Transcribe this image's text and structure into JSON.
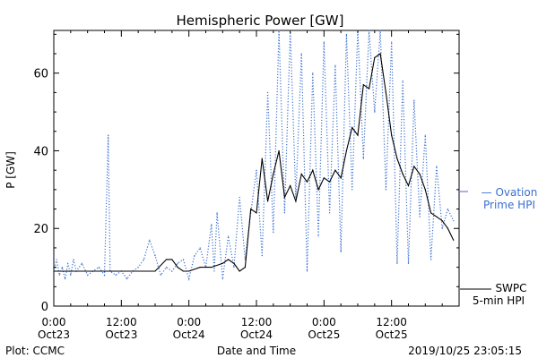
{
  "chart_data": {
    "type": "line",
    "title": "Hemispheric Power [GW]",
    "xlabel": "Date and Time",
    "ylabel": "P [GW]",
    "xlim": [
      "2019-10-23 00:00",
      "2019-10-26 00:00"
    ],
    "ylim": [
      0,
      71
    ],
    "y_ticks": [
      0,
      20,
      40,
      60
    ],
    "x_ticks": [
      {
        "at": "2019-10-23 00:00",
        "line1": "0:00",
        "line2": "Oct23"
      },
      {
        "at": "2019-10-23 12:00",
        "line1": "12:00",
        "line2": "Oct23"
      },
      {
        "at": "2019-10-24 00:00",
        "line1": "0:00",
        "line2": "Oct24"
      },
      {
        "at": "2019-10-24 12:00",
        "line1": "12:00",
        "line2": "Oct24"
      },
      {
        "at": "2019-10-25 00:00",
        "line1": "0:00",
        "line2": "Oct25"
      },
      {
        "at": "2019-10-25 12:00",
        "line1": "12:00",
        "line2": "Oct25"
      }
    ],
    "series": [
      {
        "name": "Ovation Prime HPI",
        "legend_lines": [
          "— Ovation",
          "Prime HPI"
        ],
        "color": "#3a6fd0",
        "style": "dotted",
        "points": [
          [
            "2019-10-23 00:00",
            9
          ],
          [
            "2019-10-23 00:30",
            12
          ],
          [
            "2019-10-23 01:00",
            8
          ],
          [
            "2019-10-23 01:30",
            10
          ],
          [
            "2019-10-23 02:00",
            7
          ],
          [
            "2019-10-23 02:30",
            11
          ],
          [
            "2019-10-23 03:00",
            8
          ],
          [
            "2019-10-23 03:30",
            12
          ],
          [
            "2019-10-23 04:00",
            9
          ],
          [
            "2019-10-23 05:00",
            11
          ],
          [
            "2019-10-23 06:00",
            8
          ],
          [
            "2019-10-23 07:00",
            9
          ],
          [
            "2019-10-23 08:00",
            10
          ],
          [
            "2019-10-23 09:00",
            8
          ],
          [
            "2019-10-23 09:40",
            44
          ],
          [
            "2019-10-23 10:00",
            9
          ],
          [
            "2019-10-23 11:00",
            8
          ],
          [
            "2019-10-23 12:00",
            9
          ],
          [
            "2019-10-23 13:00",
            7
          ],
          [
            "2019-10-23 14:00",
            9
          ],
          [
            "2019-10-23 15:00",
            10
          ],
          [
            "2019-10-23 16:00",
            12
          ],
          [
            "2019-10-23 17:00",
            17
          ],
          [
            "2019-10-23 18:00",
            13
          ],
          [
            "2019-10-23 19:00",
            8
          ],
          [
            "2019-10-23 20:00",
            10
          ],
          [
            "2019-10-23 21:00",
            9
          ],
          [
            "2019-10-23 22:00",
            11
          ],
          [
            "2019-10-23 23:00",
            12
          ],
          [
            "2019-10-24 00:00",
            7
          ],
          [
            "2019-10-24 01:00",
            13
          ],
          [
            "2019-10-24 02:00",
            15
          ],
          [
            "2019-10-24 03:00",
            10
          ],
          [
            "2019-10-24 04:00",
            21
          ],
          [
            "2019-10-24 04:30",
            9
          ],
          [
            "2019-10-24 05:00",
            24
          ],
          [
            "2019-10-24 06:00",
            7
          ],
          [
            "2019-10-24 07:00",
            18
          ],
          [
            "2019-10-24 08:00",
            10
          ],
          [
            "2019-10-24 09:00",
            28
          ],
          [
            "2019-10-24 10:00",
            12
          ],
          [
            "2019-10-24 11:00",
            24
          ],
          [
            "2019-10-24 12:00",
            35
          ],
          [
            "2019-10-24 13:00",
            13
          ],
          [
            "2019-10-24 14:00",
            55
          ],
          [
            "2019-10-24 15:00",
            19
          ],
          [
            "2019-10-24 16:00",
            71
          ],
          [
            "2019-10-24 17:00",
            24
          ],
          [
            "2019-10-24 18:00",
            71
          ],
          [
            "2019-10-24 19:00",
            28
          ],
          [
            "2019-10-24 20:00",
            65
          ],
          [
            "2019-10-24 21:00",
            9
          ],
          [
            "2019-10-24 22:00",
            60
          ],
          [
            "2019-10-24 23:00",
            18
          ],
          [
            "2019-10-25 00:00",
            68
          ],
          [
            "2019-10-25 01:00",
            24
          ],
          [
            "2019-10-25 02:00",
            62
          ],
          [
            "2019-10-25 03:00",
            14
          ],
          [
            "2019-10-25 04:00",
            70
          ],
          [
            "2019-10-25 05:00",
            30
          ],
          [
            "2019-10-25 06:00",
            71
          ],
          [
            "2019-10-25 07:00",
            38
          ],
          [
            "2019-10-25 08:00",
            71
          ],
          [
            "2019-10-25 09:00",
            50
          ],
          [
            "2019-10-25 10:00",
            71
          ],
          [
            "2019-10-25 11:00",
            30
          ],
          [
            "2019-10-25 12:00",
            68
          ],
          [
            "2019-10-25 13:00",
            11
          ],
          [
            "2019-10-25 14:00",
            58
          ],
          [
            "2019-10-25 15:00",
            11
          ],
          [
            "2019-10-25 16:00",
            53
          ],
          [
            "2019-10-25 17:00",
            23
          ],
          [
            "2019-10-25 18:00",
            44
          ],
          [
            "2019-10-25 19:00",
            12
          ],
          [
            "2019-10-25 20:00",
            36
          ],
          [
            "2019-10-25 21:00",
            20
          ],
          [
            "2019-10-25 22:00",
            25
          ],
          [
            "2019-10-25 23:00",
            22
          ]
        ]
      },
      {
        "name": "SWPC 5-min HPI",
        "legend_lines": [
          "SWPC",
          "5-min HPI"
        ],
        "color": "#000000",
        "style": "solid",
        "points": [
          [
            "2019-10-23 00:00",
            9
          ],
          [
            "2019-10-23 04:00",
            9
          ],
          [
            "2019-10-23 08:00",
            9
          ],
          [
            "2019-10-23 12:00",
            9
          ],
          [
            "2019-10-23 16:00",
            9
          ],
          [
            "2019-10-23 18:00",
            9
          ],
          [
            "2019-10-23 20:00",
            12
          ],
          [
            "2019-10-23 21:00",
            12
          ],
          [
            "2019-10-23 22:00",
            10
          ],
          [
            "2019-10-23 23:00",
            9
          ],
          [
            "2019-10-24 00:00",
            9
          ],
          [
            "2019-10-24 02:00",
            10
          ],
          [
            "2019-10-24 04:00",
            10
          ],
          [
            "2019-10-24 06:00",
            11
          ],
          [
            "2019-10-24 07:00",
            12
          ],
          [
            "2019-10-24 08:00",
            11
          ],
          [
            "2019-10-24 09:00",
            9
          ],
          [
            "2019-10-24 10:00",
            10
          ],
          [
            "2019-10-24 11:00",
            25
          ],
          [
            "2019-10-24 12:00",
            24
          ],
          [
            "2019-10-24 13:00",
            38
          ],
          [
            "2019-10-24 14:00",
            27
          ],
          [
            "2019-10-24 15:00",
            34
          ],
          [
            "2019-10-24 16:00",
            40
          ],
          [
            "2019-10-24 17:00",
            28
          ],
          [
            "2019-10-24 18:00",
            31
          ],
          [
            "2019-10-24 19:00",
            27
          ],
          [
            "2019-10-24 20:00",
            34
          ],
          [
            "2019-10-24 21:00",
            32
          ],
          [
            "2019-10-24 22:00",
            35
          ],
          [
            "2019-10-24 23:00",
            30
          ],
          [
            "2019-10-25 00:00",
            33
          ],
          [
            "2019-10-25 01:00",
            32
          ],
          [
            "2019-10-25 02:00",
            35
          ],
          [
            "2019-10-25 03:00",
            33
          ],
          [
            "2019-10-25 04:00",
            40
          ],
          [
            "2019-10-25 05:00",
            46
          ],
          [
            "2019-10-25 06:00",
            44
          ],
          [
            "2019-10-25 07:00",
            57
          ],
          [
            "2019-10-25 08:00",
            56
          ],
          [
            "2019-10-25 09:00",
            64
          ],
          [
            "2019-10-25 10:00",
            65
          ],
          [
            "2019-10-25 11:00",
            55
          ],
          [
            "2019-10-25 12:00",
            44
          ],
          [
            "2019-10-25 13:00",
            38
          ],
          [
            "2019-10-25 14:00",
            34
          ],
          [
            "2019-10-25 15:00",
            31
          ],
          [
            "2019-10-25 16:00",
            36
          ],
          [
            "2019-10-25 17:00",
            34
          ],
          [
            "2019-10-25 18:00",
            30
          ],
          [
            "2019-10-25 19:00",
            24
          ],
          [
            "2019-10-25 20:00",
            23
          ],
          [
            "2019-10-25 21:00",
            22
          ],
          [
            "2019-10-25 22:00",
            20
          ],
          [
            "2019-10-25 23:00",
            17
          ]
        ]
      }
    ]
  },
  "footer": {
    "left": "Plot: CCMC",
    "center": "Date and Time",
    "right": "2019/10/25 23:05:15"
  }
}
